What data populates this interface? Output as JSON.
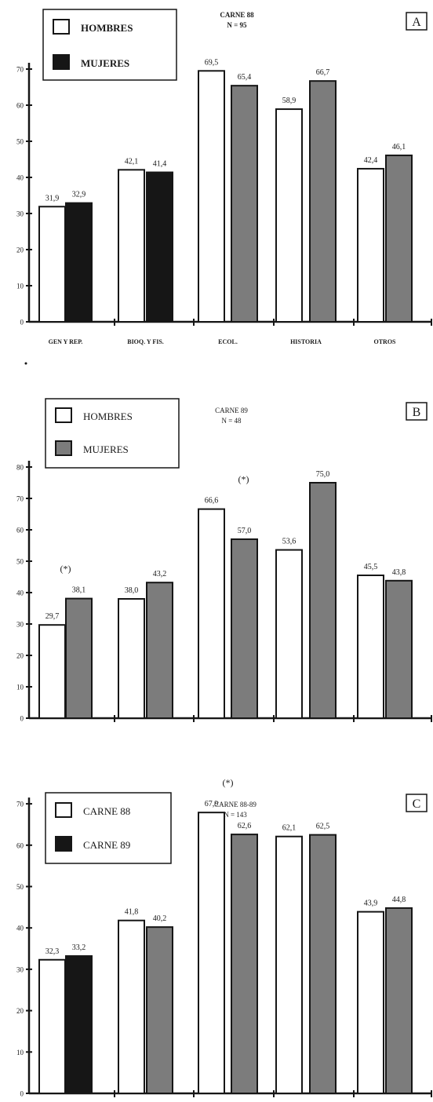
{
  "colors": {
    "white_bar": "#ffffff",
    "black_bar": "#161616",
    "gray_bar": "#7c7c7c",
    "ink": "#161616"
  },
  "chart_data": [
    {
      "type": "bar",
      "panel_label": "A",
      "title": "CARNE 88",
      "subtitle": "N = 95",
      "categories": [
        "GEN Y REP.",
        "BIOQ. Y FIS.",
        "ECOL.",
        "HISTORIA",
        "OTROS"
      ],
      "ylim": [
        0,
        70
      ],
      "yticks": [
        0,
        10,
        20,
        30,
        40,
        50,
        60,
        70
      ],
      "legend": "top-left, boxed",
      "series": [
        {
          "name": "HOMBRES",
          "fill": "white",
          "values": [
            31.9,
            42.1,
            69.5,
            58.9,
            42.4
          ],
          "labels": [
            "31,9",
            "42,1",
            "69,5",
            "58,9",
            "42,4"
          ]
        },
        {
          "name": "MUJERES",
          "fill": [
            "black",
            "black",
            "gray",
            "gray",
            "gray"
          ],
          "values": [
            32.9,
            41.4,
            65.4,
            66.7,
            46.1
          ],
          "labels": [
            "32,9",
            "41,4",
            "65,4",
            "66,7",
            "46,1"
          ]
        }
      ],
      "annotations": []
    },
    {
      "type": "bar",
      "panel_label": "B",
      "title": "CARNE 89",
      "subtitle": "N = 48",
      "categories": [
        "",
        "",
        "",
        "",
        ""
      ],
      "ylim": [
        0,
        80
      ],
      "yticks": [
        0,
        10,
        20,
        30,
        40,
        50,
        60,
        70,
        80
      ],
      "legend": "top-left, boxed",
      "series": [
        {
          "name": "HOMBRES",
          "fill": "white",
          "values": [
            29.7,
            38.0,
            66.6,
            53.6,
            45.5
          ],
          "labels": [
            "29,7",
            "38,0",
            "66,6",
            "53,6",
            "45,5"
          ]
        },
        {
          "name": "MUJERES",
          "fill": "gray",
          "values": [
            38.1,
            43.2,
            57.0,
            75.0,
            43.8
          ],
          "labels": [
            "38,1",
            "43,2",
            "57,0",
            "75,0",
            "43,8"
          ]
        }
      ],
      "annotations": [
        {
          "text": "(*)",
          "category": 0
        },
        {
          "text": "(*)",
          "category": 2
        }
      ]
    },
    {
      "type": "bar",
      "panel_label": "C",
      "title": "CARNE 88-89",
      "subtitle": "N = 143",
      "categories": [
        "",
        "",
        "",
        "",
        ""
      ],
      "ylim": [
        0,
        70
      ],
      "yticks": [
        0,
        10,
        20,
        30,
        40,
        50,
        60,
        70
      ],
      "legend": "top-left, boxed",
      "series": [
        {
          "name": "CARNE 88",
          "fill": "white",
          "values": [
            32.3,
            41.8,
            67.9,
            62.1,
            43.9
          ],
          "labels": [
            "32,3",
            "41,8",
            "67,9",
            "62,1",
            "43,9"
          ]
        },
        {
          "name": "CARNE 89",
          "fill": [
            "black",
            "gray",
            "gray",
            "gray",
            "gray"
          ],
          "values": [
            33.2,
            40.2,
            62.6,
            62.5,
            44.8
          ],
          "labels": [
            "33,2",
            "40,2",
            "62,6",
            "62,5",
            "44,8"
          ]
        }
      ],
      "annotations": [
        {
          "text": "(*)",
          "category": 2
        }
      ]
    }
  ]
}
